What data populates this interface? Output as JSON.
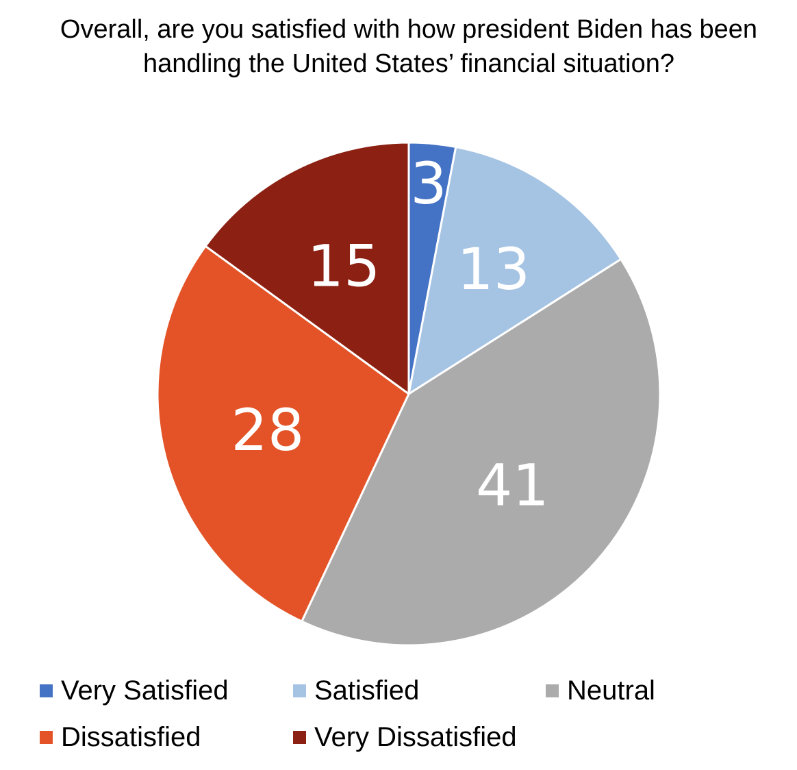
{
  "chart_data": {
    "type": "pie",
    "title": "Overall, are you satisfied with how president Biden has been handling the United States’ financial situation?",
    "categories": [
      "Very Satisfied",
      "Satisfied",
      "Neutral",
      "Dissatisfied",
      "Very Dissatisfied"
    ],
    "values": [
      3,
      13,
      41,
      28,
      15
    ],
    "labels": [
      "3",
      "13",
      "41",
      "28",
      "15"
    ],
    "colors": [
      "#4472C4",
      "#A5C3E3",
      "#ABABAB",
      "#E35327",
      "#8B2013"
    ],
    "legend_position": "bottom",
    "start": "top",
    "direction": "clockwise"
  },
  "legend": {
    "items": [
      {
        "label": "Very Satisfied",
        "color": "#4472C4"
      },
      {
        "label": "Satisfied",
        "color": "#A5C3E3"
      },
      {
        "label": "Neutral",
        "color": "#ABABAB"
      },
      {
        "label": "Dissatisfied",
        "color": "#E35327"
      },
      {
        "label": "Very Dissatisfied",
        "color": "#8B2013"
      }
    ]
  }
}
